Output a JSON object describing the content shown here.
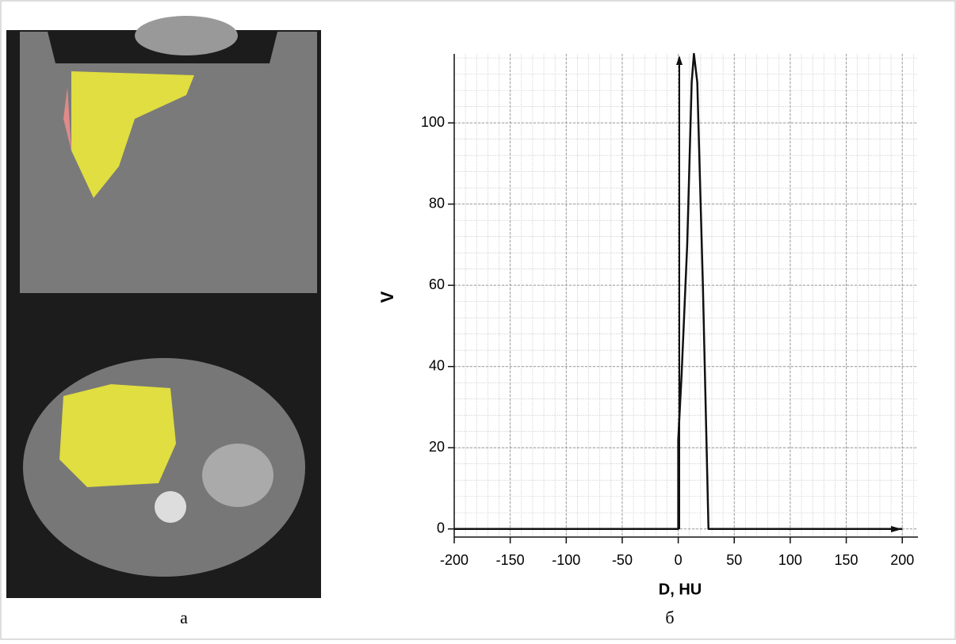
{
  "chart_data": {
    "type": "line",
    "x_label": "D, HU",
    "y_label": "V",
    "x": [
      -200,
      0,
      0,
      3,
      8,
      12,
      14,
      17,
      22,
      27,
      200
    ],
    "series": [
      {
        "color": "#111111",
        "values": [
          0,
          0,
          22,
          38,
          70,
          110,
          117,
          110,
          60,
          0,
          0
        ]
      }
    ],
    "xlim": [
      -200,
      214
    ],
    "ylim": [
      -2,
      117
    ],
    "xticks": [
      -200,
      -150,
      -100,
      -50,
      0,
      50,
      100,
      150,
      200
    ],
    "yticks": [
      0,
      20,
      40,
      60,
      80,
      100
    ],
    "grid": true
  },
  "captions": {
    "left": "а",
    "right": "б"
  }
}
